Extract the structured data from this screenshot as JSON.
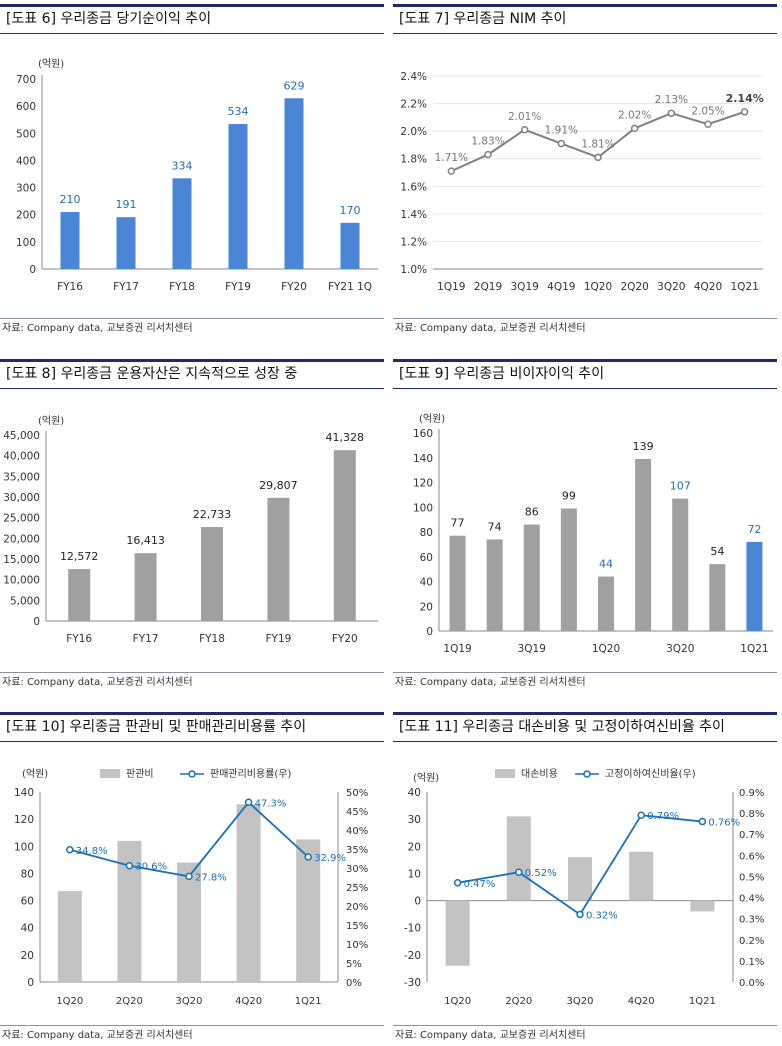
{
  "source_text": "자료: Company data, 교보증권 리서치센터",
  "colors": {
    "blue_bar": "#4a86d4",
    "gray_bar": "#a0a0a0",
    "light_gray_bar": "#c3c3c3",
    "line_gray": "#808080",
    "line_blue": "#1a6fb5",
    "label_blue": "#2a6cb0",
    "title_rule": "#1f2a6b"
  },
  "chart_data": [
    {
      "type": "bar",
      "title": "[도표 6] 우리종금 당기순이익 추이",
      "unit_label": "(억원)",
      "categories": [
        "FY16",
        "FY17",
        "FY18",
        "FY19",
        "FY20",
        "FY21 1Q"
      ],
      "values": [
        210,
        191,
        334,
        534,
        629,
        170
      ],
      "data_labels": [
        "210",
        "191",
        "334",
        "534",
        "629",
        "170"
      ],
      "ylim": [
        0,
        700
      ],
      "yticks": [
        "0",
        "100",
        "200",
        "300",
        "400",
        "500",
        "600",
        "700"
      ],
      "bar_color": "#4a86d4"
    },
    {
      "type": "line",
      "title": "[도표 7] 우리종금 NIM 추이",
      "categories": [
        "1Q19",
        "2Q19",
        "3Q19",
        "4Q19",
        "1Q20",
        "2Q20",
        "3Q20",
        "4Q20",
        "1Q21"
      ],
      "values": [
        1.71,
        1.83,
        2.01,
        1.91,
        1.81,
        2.02,
        2.13,
        2.05,
        2.14
      ],
      "data_labels": [
        "1.71%",
        "1.83%",
        "2.01%",
        "1.91%",
        "1.81%",
        "2.02%",
        "2.13%",
        "2.05%",
        "2.14%"
      ],
      "ylim": [
        1.0,
        2.4
      ],
      "yticks": [
        "1.0%",
        "1.2%",
        "1.4%",
        "1.6%",
        "1.8%",
        "2.0%",
        "2.2%",
        "2.4%"
      ],
      "line_color": "#808080"
    },
    {
      "type": "bar",
      "title": "[도표 8] 우리종금 운용자산은 지속적으로 성장 중",
      "unit_label": "(억원)",
      "categories": [
        "FY16",
        "FY17",
        "FY18",
        "FY19",
        "FY20"
      ],
      "values": [
        12572,
        16413,
        22733,
        29807,
        41328
      ],
      "data_labels": [
        "12,572",
        "16,413",
        "22,733",
        "29,807",
        "41,328"
      ],
      "ylim": [
        0,
        45000
      ],
      "yticks": [
        "0",
        "5,000",
        "10,000",
        "15,000",
        "20,000",
        "25,000",
        "30,000",
        "35,000",
        "40,000",
        "45,000"
      ],
      "bar_color": "#a0a0a0"
    },
    {
      "type": "bar",
      "title": "[도표 9] 우리종금 비이자이익 추이",
      "unit_label": "(억원)",
      "categories": [
        "1Q19",
        "2Q19",
        "3Q19",
        "4Q19",
        "1Q20",
        "2Q20",
        "3Q20",
        "4Q20",
        "1Q21"
      ],
      "tick_labels": [
        "1Q19",
        "",
        "3Q19",
        "",
        "1Q20",
        "",
        "3Q20",
        "",
        "1Q21"
      ],
      "values": [
        77,
        74,
        86,
        99,
        44,
        139,
        107,
        54,
        72
      ],
      "data_labels": [
        "77",
        "74",
        "86",
        "99",
        "44",
        "139",
        "107",
        "54",
        "72"
      ],
      "ylim": [
        0,
        160
      ],
      "yticks": [
        "0",
        "20",
        "40",
        "60",
        "80",
        "100",
        "120",
        "140",
        "160"
      ],
      "bar_color": "#a0a0a0",
      "highlight_color": "#4a86d4"
    },
    {
      "type": "bar",
      "title": "[도표 10] 우리종금 판관비 및 판매관리비용률 추이",
      "unit_label": "(억원)",
      "categories": [
        "1Q20",
        "2Q20",
        "3Q20",
        "4Q20",
        "1Q21"
      ],
      "series": [
        {
          "name": "판관비",
          "type": "bar",
          "values": [
            67,
            104,
            88,
            131,
            105
          ],
          "color": "#c3c3c3"
        },
        {
          "name": "판매관리비용률(우)",
          "type": "line",
          "values": [
            34.8,
            30.6,
            27.8,
            47.3,
            32.9
          ],
          "data_labels": [
            "34.8%",
            "30.6%",
            "27.8%",
            "47.3%",
            "32.9%"
          ],
          "color": "#1a6fb5"
        }
      ],
      "ylim": [
        0,
        140
      ],
      "yticks": [
        "0",
        "20",
        "40",
        "60",
        "80",
        "100",
        "120",
        "140"
      ],
      "y2lim": [
        0,
        50
      ],
      "y2ticks": [
        "0%",
        "5%",
        "10%",
        "15%",
        "20%",
        "25%",
        "30%",
        "35%",
        "40%",
        "45%",
        "50%"
      ],
      "legend": "top"
    },
    {
      "type": "bar",
      "title": "[도표 11] 우리종금 대손비용 및 고정이하여신비율 추이",
      "unit_label": "(억원)",
      "categories": [
        "1Q20",
        "2Q20",
        "3Q20",
        "4Q20",
        "1Q21"
      ],
      "series": [
        {
          "name": "대손비용",
          "type": "bar",
          "values": [
            -24,
            31,
            16,
            18,
            -4
          ],
          "color": "#c3c3c3"
        },
        {
          "name": "고정이하여신비율(우)",
          "type": "line",
          "values": [
            0.47,
            0.52,
            0.32,
            0.79,
            0.76
          ],
          "data_labels": [
            "0.47%",
            "0.52%",
            "0.32%",
            "0.79%",
            "0.76%"
          ],
          "color": "#1a6fb5"
        }
      ],
      "ylim": [
        -30,
        40
      ],
      "yticks": [
        "-30",
        "-20",
        "-10",
        "0",
        "10",
        "20",
        "30",
        "40"
      ],
      "y2lim": [
        0,
        0.9
      ],
      "y2ticks": [
        "0.0%",
        "0.1%",
        "0.2%",
        "0.3%",
        "0.4%",
        "0.5%",
        "0.6%",
        "0.7%",
        "0.8%",
        "0.9%"
      ],
      "legend": "top"
    }
  ]
}
